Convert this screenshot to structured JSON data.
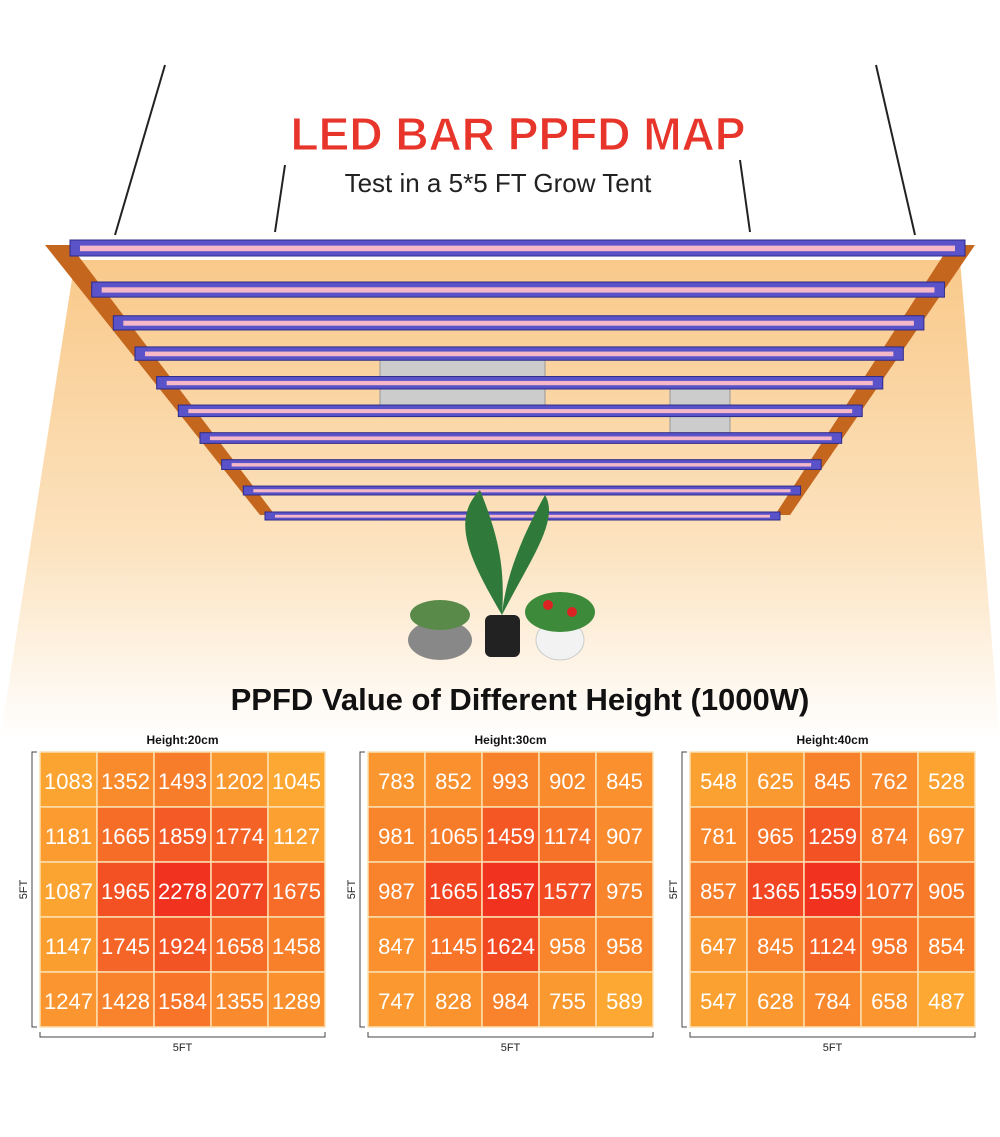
{
  "header": {
    "title": "LED BAR PPFD MAP",
    "subtitle": "Test in a 5*5 FT Grow Tent"
  },
  "section_title": "PPFD Value of Different Height (1000W)",
  "maps": [
    {
      "title": "Height:20cm",
      "side_label": "5FT",
      "bottom_label": "5FT",
      "rows": [
        [
          "1083",
          "1352",
          "1493",
          "1202",
          "1045"
        ],
        [
          "1181",
          "1665",
          "1859",
          "1774",
          "1127"
        ],
        [
          "1087",
          "1965",
          "2278",
          "2077",
          "1675"
        ],
        [
          "1147",
          "1745",
          "1924",
          "1658",
          "1458"
        ],
        [
          "1247",
          "1428",
          "1584",
          "1355",
          "1289"
        ]
      ]
    },
    {
      "title": "Height:30cm",
      "side_label": "5FT",
      "bottom_label": "5FT",
      "rows": [
        [
          "783",
          "852",
          "993",
          "902",
          "845"
        ],
        [
          "981",
          "1065",
          "1459",
          "1174",
          "907"
        ],
        [
          "987",
          "1665",
          "1857",
          "1577",
          "975"
        ],
        [
          "847",
          "1145",
          "1624",
          "958",
          "958"
        ],
        [
          "747",
          "828",
          "984",
          "755",
          "589"
        ]
      ]
    },
    {
      "title": "Height:40cm",
      "side_label": "5FT",
      "bottom_label": "5FT",
      "rows": [
        [
          "548",
          "625",
          "845",
          "762",
          "528"
        ],
        [
          "781",
          "965",
          "1259",
          "874",
          "697"
        ],
        [
          "857",
          "1365",
          "1559",
          "1077",
          "905"
        ],
        [
          "647",
          "845",
          "1124",
          "958",
          "854"
        ],
        [
          "547",
          "628",
          "784",
          "658",
          "487"
        ]
      ]
    }
  ]
}
